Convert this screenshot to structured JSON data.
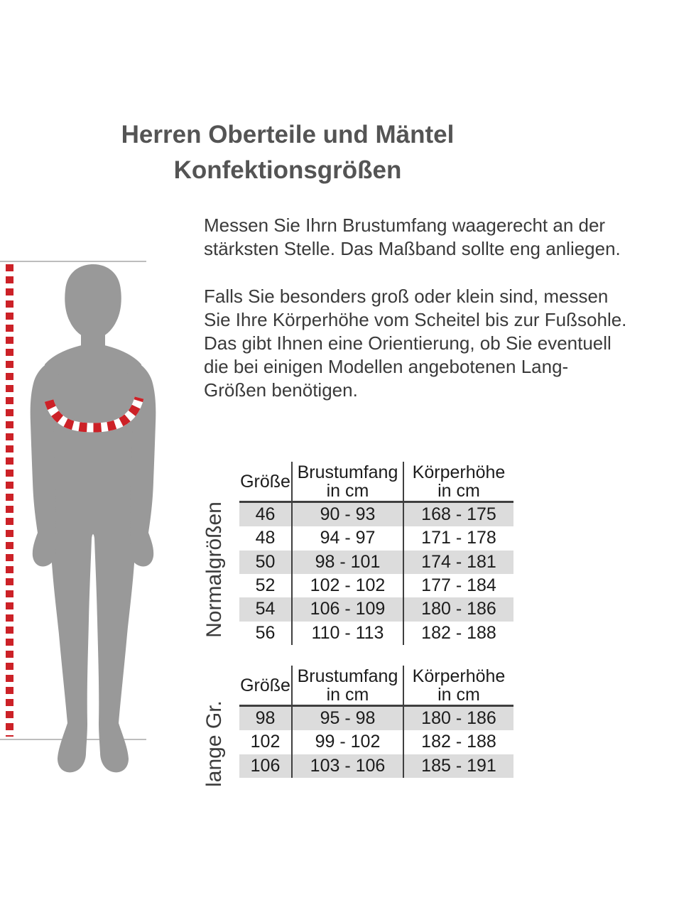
{
  "title": {
    "text": "Herren Oberteile und Mäntel\nKonfektionsgrößen"
  },
  "intro": {
    "p1": "Messen Sie Ihrn Brustumfang waagerecht an der\nstärksten Stelle. Das Maßband sollte eng anliegen.",
    "p2": "Falls Sie besonders groß oder klein sind, messen\nSie Ihre Körperhöhe vom Scheitel bis zur Fußsohle.\nDas gibt Ihnen eine Orientierung, ob Sie eventuell\ndie bei einigen Modellen angebotenen Lang-\nGrößen benötigen."
  },
  "figure": {
    "description": "male-body-silhouette-with-chest-measuring-tape-and-height-dotted-line"
  },
  "tables": [
    {
      "group_label": "Normalgrößen",
      "headers": [
        "Größe",
        "Brustumfang\nin cm",
        "Körperhöhe\nin cm"
      ],
      "rows": [
        [
          "46",
          "90 - 93",
          "168 - 175"
        ],
        [
          "48",
          "94 - 97",
          "171 - 178"
        ],
        [
          "50",
          "98 - 101",
          "174 - 181"
        ],
        [
          "52",
          "102 - 102",
          "177 - 184"
        ],
        [
          "54",
          "106 - 109",
          "180 - 186"
        ],
        [
          "56",
          "110 - 113",
          "182 - 188"
        ]
      ]
    },
    {
      "group_label": "lange Gr.",
      "headers": [
        "Größe",
        "Brustumfang\nin cm",
        "Körperhöhe\nin cm"
      ],
      "rows": [
        [
          "98",
          "95 - 98",
          "180 - 186"
        ],
        [
          "102",
          "99 - 102",
          "182 - 188"
        ],
        [
          "106",
          "103 - 106",
          "185 - 191"
        ]
      ]
    }
  ],
  "colors": {
    "accent_red": "#cc2127",
    "silhouette_gray": "#999999",
    "row_shade": "#dcdcdc",
    "line_gray": "#bdbdbd",
    "border_dark": "#3f3f3f",
    "title_color": "#545454",
    "text_color": "#3a3a3a",
    "table_text": "#1c1c1c"
  }
}
